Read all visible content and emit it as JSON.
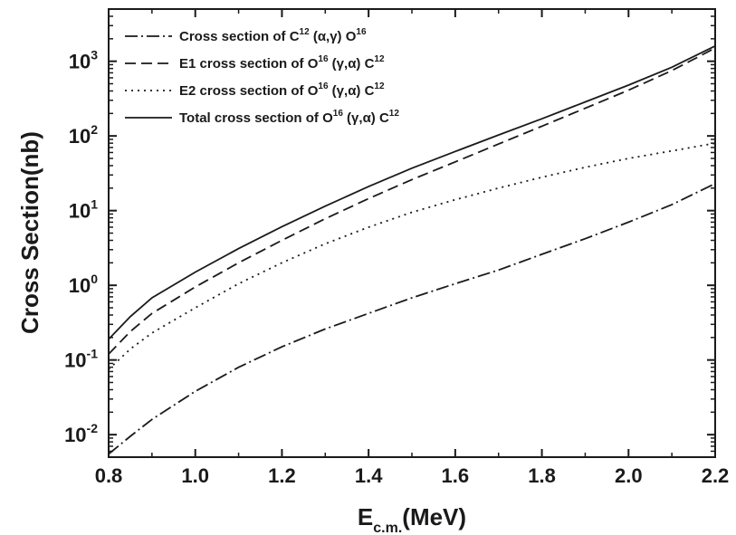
{
  "chart_data": {
    "type": "line",
    "xlabel_main": "E",
    "xlabel_sub": "c.m.",
    "xlabel_unit": "(MeV)",
    "ylabel": "Cross Section(nb)",
    "xlim": [
      0.8,
      2.2
    ],
    "ylim": [
      0.005,
      5000
    ],
    "yscale": "log",
    "grid": false,
    "legend_position": "top-left",
    "x_ticks": [
      0.8,
      1.0,
      1.2,
      1.4,
      1.6,
      1.8,
      2.0,
      2.2
    ],
    "x_tick_labels": [
      "0.8",
      "1.0",
      "1.2",
      "1.4",
      "1.6",
      "1.8",
      "2.0",
      "2.2"
    ],
    "y_ticks": [
      0.01,
      0.1,
      1,
      10,
      100,
      1000
    ],
    "y_tick_labels": [
      {
        "base": "10",
        "exp": "-2"
      },
      {
        "base": "10",
        "exp": "-1"
      },
      {
        "base": "10",
        "exp": "0"
      },
      {
        "base": "10",
        "exp": "1"
      },
      {
        "base": "10",
        "exp": "2"
      },
      {
        "base": "10",
        "exp": "3"
      }
    ],
    "series": [
      {
        "legend_parts": [
          [
            "Cross section of C",
            ""
          ],
          [
            "12",
            "sup"
          ],
          [
            " (α,γ) O",
            ""
          ],
          [
            "16",
            "sup"
          ]
        ],
        "dash": "14,4,2,4",
        "color": "#1a1a1a",
        "x": [
          0.8,
          0.85,
          0.9,
          1.0,
          1.1,
          1.2,
          1.3,
          1.4,
          1.5,
          1.6,
          1.7,
          1.8,
          1.9,
          2.0,
          2.1,
          2.2
        ],
        "y": [
          0.0055,
          0.0095,
          0.016,
          0.038,
          0.08,
          0.15,
          0.26,
          0.42,
          0.68,
          1.05,
          1.6,
          2.6,
          4.2,
          7.0,
          12.0,
          23.0
        ]
      },
      {
        "legend_parts": [
          [
            "E1 cross section of O",
            ""
          ],
          [
            "16",
            "sup"
          ],
          [
            " (γ,α) C",
            ""
          ],
          [
            "12",
            "sup"
          ]
        ],
        "dash": "12,6",
        "color": "#1a1a1a",
        "x": [
          0.8,
          0.85,
          0.9,
          1.0,
          1.1,
          1.2,
          1.3,
          1.4,
          1.5,
          1.6,
          1.7,
          1.8,
          1.9,
          2.0,
          2.1,
          2.2
        ],
        "y": [
          0.12,
          0.24,
          0.42,
          0.95,
          2.0,
          4.0,
          7.8,
          14.5,
          26.0,
          45.0,
          78.0,
          135.0,
          235.0,
          410.0,
          750.0,
          1500.0
        ]
      },
      {
        "legend_parts": [
          [
            "E2 cross section of O",
            ""
          ],
          [
            "16",
            "sup"
          ],
          [
            " (γ,α) C",
            ""
          ],
          [
            "12",
            "sup"
          ]
        ],
        "dash": "2,5",
        "color": "#1a1a1a",
        "x": [
          0.8,
          0.85,
          0.9,
          1.0,
          1.1,
          1.2,
          1.3,
          1.4,
          1.5,
          1.6,
          1.7,
          1.8,
          1.9,
          2.0,
          2.1,
          2.2
        ],
        "y": [
          0.075,
          0.14,
          0.23,
          0.5,
          1.05,
          2.0,
          3.6,
          6.0,
          9.5,
          14.0,
          20.0,
          28.0,
          38.0,
          50.0,
          63.0,
          80.0
        ]
      },
      {
        "legend_parts": [
          [
            "Total cross section of O",
            ""
          ],
          [
            "16",
            "sup"
          ],
          [
            " (γ,α) C",
            ""
          ],
          [
            "12",
            "sup"
          ]
        ],
        "dash": "",
        "color": "#1a1a1a",
        "x": [
          0.8,
          0.85,
          0.9,
          1.0,
          1.1,
          1.2,
          1.3,
          1.4,
          1.5,
          1.6,
          1.7,
          1.8,
          1.9,
          2.0,
          2.1,
          2.2
        ],
        "y": [
          0.19,
          0.38,
          0.68,
          1.5,
          3.1,
          6.1,
          11.5,
          21.0,
          37.0,
          62.0,
          103.0,
          170.0,
          285.0,
          480.0,
          830.0,
          1600.0
        ]
      }
    ]
  }
}
